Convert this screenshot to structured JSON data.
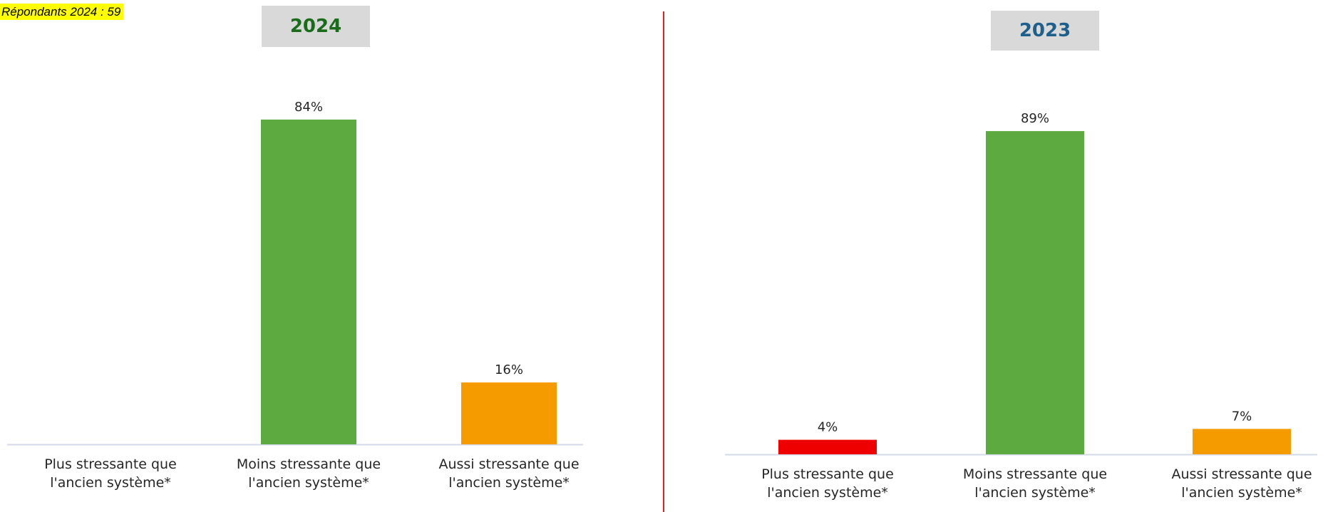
{
  "respondents_label": "Répondants  2024 : 59",
  "chart_data": [
    {
      "type": "bar",
      "title": "2024",
      "categories": [
        [
          "Plus stressante que",
          "l'ancien système*"
        ],
        [
          "Moins stressante que",
          "l'ancien système*"
        ],
        [
          "Aussi stressante que",
          "l'ancien système*"
        ]
      ],
      "values": [
        null,
        84,
        16
      ],
      "value_labels": [
        "",
        "84%",
        "16%"
      ],
      "colors": [
        "#ee0000",
        "#5daa41",
        "#f59b00"
      ],
      "ylim": [
        0,
        100
      ],
      "grid": false,
      "title_color": "#1a6b1a"
    },
    {
      "type": "bar",
      "title": "2023",
      "categories": [
        [
          "Plus stressante que",
          "l'ancien système*"
        ],
        [
          "Moins stressante que",
          "l'ancien système*"
        ],
        [
          "Aussi stressante que",
          "l'ancien système*"
        ]
      ],
      "values": [
        4,
        89,
        7
      ],
      "value_labels": [
        "4%",
        "89%",
        "7%"
      ],
      "colors": [
        "#ee0000",
        "#5daa41",
        "#f59b00"
      ],
      "ylim": [
        0,
        100
      ],
      "grid": false,
      "title_color": "#1f5f8b"
    }
  ]
}
